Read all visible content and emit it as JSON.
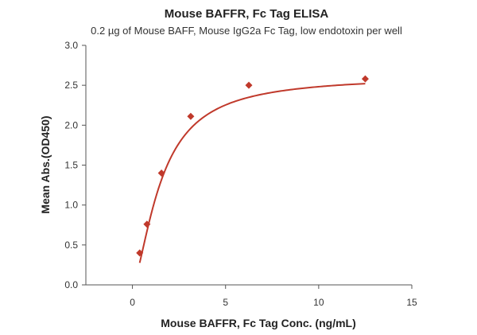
{
  "chart_data": {
    "type": "scatter",
    "title": "Mouse BAFFR, Fc Tag ELISA",
    "subtitle": "0.2 µg of Mouse BAFF, Mouse IgG2a Fc Tag, low endotoxin per well",
    "xlabel": "Mouse BAFFR, Fc Tag Conc. (ng/mL)",
    "ylabel": "Mean Abs.(OD450)",
    "xlim": [
      -2.5,
      15
    ],
    "ylim": [
      0,
      3.0
    ],
    "xticks": [
      0,
      5,
      10,
      15
    ],
    "yticks": [
      0.0,
      0.5,
      1.0,
      1.5,
      2.0,
      2.5,
      3.0
    ],
    "xtick_labels": [
      "0",
      "5",
      "10",
      "15"
    ],
    "ytick_labels": [
      "0.0",
      "0.5",
      "1.0",
      "1.5",
      "2.0",
      "2.5",
      "3.0"
    ],
    "grid": false,
    "series": [
      {
        "marker": "diamond",
        "color": "#c0392b",
        "x": [
          0.39,
          0.78,
          1.56,
          3.13,
          6.25,
          12.5
        ],
        "y": [
          0.4,
          0.76,
          1.4,
          2.11,
          2.5,
          2.58
        ],
        "fit": "saturation-curve"
      }
    ]
  }
}
